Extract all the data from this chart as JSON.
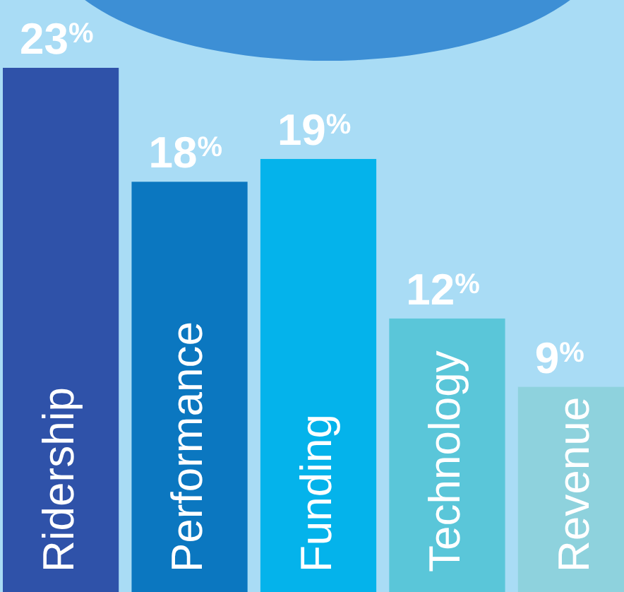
{
  "chart_data": {
    "type": "bar",
    "categories": [
      "Ridership",
      "Performance",
      "Funding",
      "Technology",
      "Revenue"
    ],
    "values": [
      23,
      18,
      19,
      12,
      9
    ],
    "colors": [
      "#2f52a9",
      "#0b77c0",
      "#04b3eb",
      "#5ac6d9",
      "#8ed2dd"
    ],
    "value_labels": [
      "23$^{%}$",
      "18$^{%}$",
      "19$^{%}$",
      "12$^{%}$",
      "9$^{%}$"
    ]
  }
}
